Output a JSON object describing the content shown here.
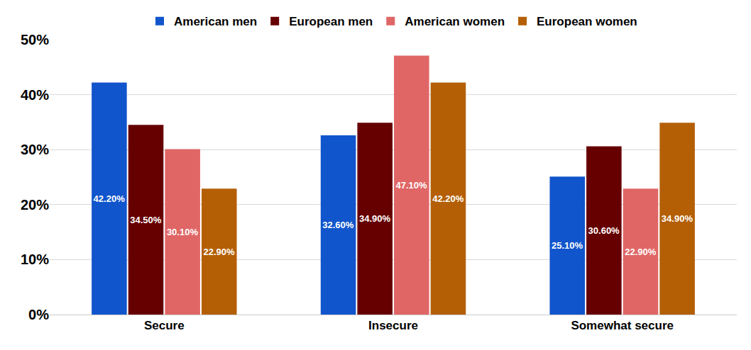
{
  "chart_data": {
    "type": "bar",
    "categories": [
      "Secure",
      "Insecure",
      "Somewhat secure"
    ],
    "series": [
      {
        "name": "American men",
        "color": "#1155cc",
        "values": [
          42.2,
          32.6,
          25.1
        ],
        "value_labels": [
          "42.20%",
          "32.60%",
          "25.10%"
        ]
      },
      {
        "name": "European men",
        "color": "#660000",
        "values": [
          34.5,
          34.9,
          30.6
        ],
        "value_labels": [
          "34.50%",
          "34.90%",
          "30.60%"
        ]
      },
      {
        "name": "American women",
        "color": "#e06666",
        "values": [
          30.1,
          47.1,
          22.9
        ],
        "value_labels": [
          "30.10%",
          "47.10%",
          "22.90%"
        ]
      },
      {
        "name": "European women",
        "color": "#b45f06",
        "values": [
          22.9,
          42.2,
          34.9
        ],
        "value_labels": [
          "22.90%",
          "42.20%",
          "34.90%"
        ]
      }
    ],
    "ylim": [
      0,
      50
    ],
    "yticks": [
      {
        "value": 0,
        "label": "0%"
      },
      {
        "value": 10,
        "label": "10%"
      },
      {
        "value": 20,
        "label": "20%"
      },
      {
        "value": 30,
        "label": "30%"
      },
      {
        "value": 40,
        "label": "40%"
      },
      {
        "value": 50,
        "label": "50%"
      }
    ],
    "grid": true,
    "legend": "top",
    "data_labels": true
  }
}
